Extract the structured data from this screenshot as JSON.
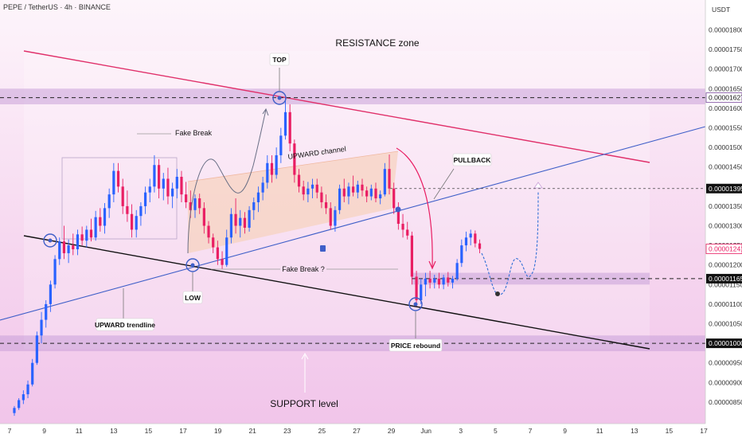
{
  "header": {
    "title": "PEPE / TetherUS · 4h · BINANCE"
  },
  "currency": "USDT",
  "chart_data": {
    "type": "candlestick",
    "symbol": "PEPE / TetherUS",
    "timeframe": "4h",
    "exchange": "BINANCE",
    "y_unit": "USDT",
    "ylim": [
      8.2e-06,
      1.87e-05
    ],
    "y_ticks": [
      "0.00001800",
      "0.00001750",
      "0.00001700",
      "0.00001650",
      "0.00001600",
      "0.00001550",
      "0.00001500",
      "0.00001450",
      "0.00001400",
      "0.00001350",
      "0.00001300",
      "0.00001250",
      "0.00001200",
      "0.00001150",
      "0.00001100",
      "0.00001050",
      "0.00000950",
      "0.00000900",
      "0.00000850"
    ],
    "x_ticks": [
      "7",
      "9",
      "11",
      "13",
      "15",
      "17",
      "19",
      "21",
      "23",
      "25",
      "27",
      "29",
      "Jun",
      "3",
      "5",
      "7",
      "9",
      "11",
      "13",
      "15",
      "17"
    ],
    "price_levels": [
      {
        "label": "0.00001627",
        "value": 1.627e-05,
        "color": "#7b4a9e"
      },
      {
        "label": "0.00001395",
        "value": 1.395e-05,
        "color": "#111111"
      },
      {
        "label": "0.00001241",
        "value": 1.241e-05,
        "color": "#e91e63"
      },
      {
        "label": "0.00001165",
        "value": 1.165e-05,
        "color": "#111111"
      },
      {
        "label": "0.00001000",
        "value": 1e-05,
        "color": "#111111"
      }
    ],
    "annotations": {
      "resistance": "RESISTANCE zone",
      "support": "SUPPORT level",
      "top": "TOP",
      "low": "LOW",
      "pullback": "PULLBACK",
      "upward_trendline": "UPWARD trendline",
      "price_rebound": "PRICE rebound",
      "upward_channel": "UPWARD channel",
      "fake_break_1": "Fake Break",
      "fake_break_2": "Fake Break ?"
    },
    "colors": {
      "bull": "#2962ff",
      "bear": "#e91e63",
      "trendline_blue": "#3f5fc8",
      "trendline_red": "#e0306a",
      "zone": "#c9a0d8"
    },
    "candles": [
      {
        "o": 8.22e-06,
        "h": 8.4e-06,
        "l": 8.15e-06,
        "c": 8.35e-06
      },
      {
        "o": 8.35e-06,
        "h": 8.6e-06,
        "l": 8.3e-06,
        "c": 8.55e-06
      },
      {
        "o": 8.55e-06,
        "h": 8.8e-06,
        "l": 8.45e-06,
        "c": 8.7e-06
      },
      {
        "o": 8.7e-06,
        "h": 9.05e-06,
        "l": 8.6e-06,
        "c": 8.95e-06
      },
      {
        "o": 8.95e-06,
        "h": 9.6e-06,
        "l": 8.9e-06,
        "c": 9.5e-06
      },
      {
        "o": 9.5e-06,
        "h": 1.03e-05,
        "l": 9.45e-06,
        "c": 1.02e-05
      },
      {
        "o": 1.02e-05,
        "h": 1.08e-05,
        "l": 1e-05,
        "c": 1.06e-05
      },
      {
        "o": 1.06e-05,
        "h": 1.11e-05,
        "l": 1.04e-05,
        "c": 1.1e-05
      },
      {
        "o": 1.1e-05,
        "h": 1.16e-05,
        "l": 1.08e-05,
        "c": 1.15e-05
      },
      {
        "o": 1.15e-05,
        "h": 1.225e-05,
        "l": 1.14e-05,
        "c": 1.215e-05
      },
      {
        "o": 1.215e-05,
        "h": 1.27e-05,
        "l": 1.2e-05,
        "c": 1.26e-05
      },
      {
        "o": 1.26e-05,
        "h": 1.3e-05,
        "l": 1.215e-05,
        "c": 1.23e-05
      },
      {
        "o": 1.23e-05,
        "h": 1.265e-05,
        "l": 1.205e-05,
        "c": 1.25e-05
      },
      {
        "o": 1.25e-05,
        "h": 1.28e-05,
        "l": 1.225e-05,
        "c": 1.24e-05
      },
      {
        "o": 1.24e-05,
        "h": 1.29e-05,
        "l": 1.225e-05,
        "c": 1.278e-05
      },
      {
        "o": 1.278e-05,
        "h": 1.298e-05,
        "l": 1.25e-05,
        "c": 1.262e-05
      },
      {
        "o": 1.262e-05,
        "h": 1.3e-05,
        "l": 1.245e-05,
        "c": 1.29e-05
      },
      {
        "o": 1.29e-05,
        "h": 1.318e-05,
        "l": 1.26e-05,
        "c": 1.27e-05
      },
      {
        "o": 1.27e-05,
        "h": 1.338e-05,
        "l": 1.262e-05,
        "c": 1.322e-05
      },
      {
        "o": 1.322e-05,
        "h": 1.345e-05,
        "l": 1.285e-05,
        "c": 1.3e-05
      },
      {
        "o": 1.3e-05,
        "h": 1.358e-05,
        "l": 1.28e-05,
        "c": 1.345e-05
      },
      {
        "o": 1.345e-05,
        "h": 1.395e-05,
        "l": 1.32e-05,
        "c": 1.38e-05
      },
      {
        "o": 1.38e-05,
        "h": 1.46e-05,
        "l": 1.36e-05,
        "c": 1.44e-05
      },
      {
        "o": 1.44e-05,
        "h": 1.46e-05,
        "l": 1.385e-05,
        "c": 1.4e-05
      },
      {
        "o": 1.4e-05,
        "h": 1.42e-05,
        "l": 1.33e-05,
        "c": 1.35e-05
      },
      {
        "o": 1.35e-05,
        "h": 1.39e-05,
        "l": 1.31e-05,
        "c": 1.33e-05
      },
      {
        "o": 1.33e-05,
        "h": 1.355e-05,
        "l": 1.27e-05,
        "c": 1.29e-05
      },
      {
        "o": 1.29e-05,
        "h": 1.34e-05,
        "l": 1.27e-05,
        "c": 1.325e-05
      },
      {
        "o": 1.325e-05,
        "h": 1.36e-05,
        "l": 1.3e-05,
        "c": 1.35e-05
      },
      {
        "o": 1.35e-05,
        "h": 1.4e-05,
        "l": 1.33e-05,
        "c": 1.385e-05
      },
      {
        "o": 1.385e-05,
        "h": 1.42e-05,
        "l": 1.36e-05,
        "c": 1.4e-05
      },
      {
        "o": 1.4e-05,
        "h": 1.48e-05,
        "l": 1.385e-05,
        "c": 1.455e-05
      },
      {
        "o": 1.455e-05,
        "h": 1.47e-05,
        "l": 1.37e-05,
        "c": 1.395e-05
      },
      {
        "o": 1.395e-05,
        "h": 1.435e-05,
        "l": 1.365e-05,
        "c": 1.42e-05
      },
      {
        "o": 1.42e-05,
        "h": 1.448e-05,
        "l": 1.355e-05,
        "c": 1.375e-05
      },
      {
        "o": 1.375e-05,
        "h": 1.41e-05,
        "l": 1.345e-05,
        "c": 1.395e-05
      },
      {
        "o": 1.395e-05,
        "h": 1.445e-05,
        "l": 1.37e-05,
        "c": 1.425e-05
      },
      {
        "o": 1.425e-05,
        "h": 1.44e-05,
        "l": 1.36e-05,
        "c": 1.38e-05
      },
      {
        "o": 1.38e-05,
        "h": 1.412e-05,
        "l": 1.345e-05,
        "c": 1.36e-05
      },
      {
        "o": 1.36e-05,
        "h": 1.39e-05,
        "l": 1.32e-05,
        "c": 1.34e-05
      },
      {
        "o": 1.34e-05,
        "h": 1.38e-05,
        "l": 1.32e-05,
        "c": 1.37e-05
      },
      {
        "o": 1.37e-05,
        "h": 1.382e-05,
        "l": 1.33e-05,
        "c": 1.345e-05
      },
      {
        "o": 1.345e-05,
        "h": 1.36e-05,
        "l": 1.28e-05,
        "c": 1.3e-05
      },
      {
        "o": 1.3e-05,
        "h": 1.312e-05,
        "l": 1.255e-05,
        "c": 1.27e-05
      },
      {
        "o": 1.27e-05,
        "h": 1.28e-05,
        "l": 1.23e-05,
        "c": 1.245e-05
      },
      {
        "o": 1.245e-05,
        "h": 1.262e-05,
        "l": 1.2e-05,
        "c": 1.215e-05
      },
      {
        "o": 1.215e-05,
        "h": 1.235e-05,
        "l": 1.19e-05,
        "c": 1.2e-05
      },
      {
        "o": 1.2e-05,
        "h": 1.29e-05,
        "l": 1.195e-05,
        "c": 1.27e-05
      },
      {
        "o": 1.27e-05,
        "h": 1.345e-05,
        "l": 1.255e-05,
        "c": 1.33e-05
      },
      {
        "o": 1.33e-05,
        "h": 1.37e-05,
        "l": 1.28e-05,
        "c": 1.3e-05
      },
      {
        "o": 1.3e-05,
        "h": 1.34e-05,
        "l": 1.27e-05,
        "c": 1.32e-05
      },
      {
        "o": 1.32e-05,
        "h": 1.335e-05,
        "l": 1.28e-05,
        "c": 1.295e-05
      },
      {
        "o": 1.295e-05,
        "h": 1.35e-05,
        "l": 1.285e-05,
        "c": 1.34e-05
      },
      {
        "o": 1.34e-05,
        "h": 1.372e-05,
        "l": 1.315e-05,
        "c": 1.36e-05
      },
      {
        "o": 1.36e-05,
        "h": 1.4e-05,
        "l": 1.335e-05,
        "c": 1.385e-05
      },
      {
        "o": 1.385e-05,
        "h": 1.425e-05,
        "l": 1.365e-05,
        "c": 1.41e-05
      },
      {
        "o": 1.41e-05,
        "h": 1.48e-05,
        "l": 1.395e-05,
        "c": 1.46e-05
      },
      {
        "o": 1.46e-05,
        "h": 1.48e-05,
        "l": 1.41e-05,
        "c": 1.43e-05
      },
      {
        "o": 1.43e-05,
        "h": 1.5e-05,
        "l": 1.42e-05,
        "c": 1.48e-05
      },
      {
        "o": 1.48e-05,
        "h": 1.55e-05,
        "l": 1.46e-05,
        "c": 1.53e-05
      },
      {
        "o": 1.53e-05,
        "h": 1.627e-05,
        "l": 1.52e-05,
        "c": 1.59e-05
      },
      {
        "o": 1.59e-05,
        "h": 1.61e-05,
        "l": 1.49e-05,
        "c": 1.51e-05
      },
      {
        "o": 1.51e-05,
        "h": 1.52e-05,
        "l": 1.41e-05,
        "c": 1.43e-05
      },
      {
        "o": 1.43e-05,
        "h": 1.445e-05,
        "l": 1.385e-05,
        "c": 1.4e-05
      },
      {
        "o": 1.4e-05,
        "h": 1.415e-05,
        "l": 1.365e-05,
        "c": 1.38e-05
      },
      {
        "o": 1.38e-05,
        "h": 1.412e-05,
        "l": 1.36e-05,
        "c": 1.395e-05
      },
      {
        "o": 1.395e-05,
        "h": 1.42e-05,
        "l": 1.37e-05,
        "c": 1.405e-05
      },
      {
        "o": 1.405e-05,
        "h": 1.42e-05,
        "l": 1.37e-05,
        "c": 1.385e-05
      },
      {
        "o": 1.385e-05,
        "h": 1.4e-05,
        "l": 1.345e-05,
        "c": 1.36e-05
      },
      {
        "o": 1.36e-05,
        "h": 1.38e-05,
        "l": 1.33e-05,
        "c": 1.345e-05
      },
      {
        "o": 1.345e-05,
        "h": 1.36e-05,
        "l": 1.29e-05,
        "c": 1.3e-05
      },
      {
        "o": 1.3e-05,
        "h": 1.35e-05,
        "l": 1.285e-05,
        "c": 1.34e-05
      },
      {
        "o": 1.34e-05,
        "h": 1.405e-05,
        "l": 1.33e-05,
        "c": 1.395e-05
      },
      {
        "o": 1.395e-05,
        "h": 1.42e-05,
        "l": 1.36e-05,
        "c": 1.375e-05
      },
      {
        "o": 1.375e-05,
        "h": 1.41e-05,
        "l": 1.355e-05,
        "c": 1.4e-05
      },
      {
        "o": 1.4e-05,
        "h": 1.428e-05,
        "l": 1.375e-05,
        "c": 1.385e-05
      },
      {
        "o": 1.385e-05,
        "h": 1.415e-05,
        "l": 1.37e-05,
        "c": 1.405e-05
      },
      {
        "o": 1.405e-05,
        "h": 1.42e-05,
        "l": 1.375e-05,
        "c": 1.39e-05
      },
      {
        "o": 1.39e-05,
        "h": 1.4e-05,
        "l": 1.36e-05,
        "c": 1.375e-05
      },
      {
        "o": 1.375e-05,
        "h": 1.405e-05,
        "l": 1.365e-05,
        "c": 1.395e-05
      },
      {
        "o": 1.395e-05,
        "h": 1.41e-05,
        "l": 1.36e-05,
        "c": 1.37e-05
      },
      {
        "o": 1.37e-05,
        "h": 1.39e-05,
        "l": 1.355e-05,
        "c": 1.38e-05
      },
      {
        "o": 1.38e-05,
        "h": 1.46e-05,
        "l": 1.375e-05,
        "c": 1.445e-05
      },
      {
        "o": 1.445e-05,
        "h": 1.482e-05,
        "l": 1.38e-05,
        "c": 1.395e-05
      },
      {
        "o": 1.395e-05,
        "h": 1.41e-05,
        "l": 1.33e-05,
        "c": 1.345e-05
      },
      {
        "o": 1.345e-05,
        "h": 1.36e-05,
        "l": 1.29e-05,
        "c": 1.305e-05
      },
      {
        "o": 1.305e-05,
        "h": 1.33e-05,
        "l": 1.27e-05,
        "c": 1.29e-05
      },
      {
        "o": 1.29e-05,
        "h": 1.31e-05,
        "l": 1.265e-05,
        "c": 1.275e-05
      },
      {
        "o": 1.275e-05,
        "h": 1.285e-05,
        "l": 1.15e-05,
        "c": 1.17e-05
      },
      {
        "o": 1.17e-05,
        "h": 1.185e-05,
        "l": 1.095e-05,
        "c": 1.11e-05
      },
      {
        "o": 1.11e-05,
        "h": 1.165e-05,
        "l": 1.1e-05,
        "c": 1.15e-05
      },
      {
        "o": 1.15e-05,
        "h": 1.18e-05,
        "l": 1.12e-05,
        "c": 1.165e-05
      },
      {
        "o": 1.165e-05,
        "h": 1.185e-05,
        "l": 1.14e-05,
        "c": 1.155e-05
      },
      {
        "o": 1.155e-05,
        "h": 1.175e-05,
        "l": 1.14e-05,
        "c": 1.165e-05
      },
      {
        "o": 1.165e-05,
        "h": 1.18e-05,
        "l": 1.14e-05,
        "c": 1.15e-05
      },
      {
        "o": 1.15e-05,
        "h": 1.175e-05,
        "l": 1.138e-05,
        "c": 1.168e-05
      },
      {
        "o": 1.168e-05,
        "h": 1.182e-05,
        "l": 1.145e-05,
        "c": 1.155e-05
      },
      {
        "o": 1.155e-05,
        "h": 1.172e-05,
        "l": 1.14e-05,
        "c": 1.165e-05
      },
      {
        "o": 1.165e-05,
        "h": 1.215e-05,
        "l": 1.16e-05,
        "c": 1.205e-05
      },
      {
        "o": 1.205e-05,
        "h": 1.265e-05,
        "l": 1.195e-05,
        "c": 1.25e-05
      },
      {
        "o": 1.25e-05,
        "h": 1.285e-05,
        "l": 1.235e-05,
        "c": 1.27e-05
      },
      {
        "o": 1.27e-05,
        "h": 1.29e-05,
        "l": 1.25e-05,
        "c": 1.28e-05
      },
      {
        "o": 1.28e-05,
        "h": 1.288e-05,
        "l": 1.245e-05,
        "c": 1.255e-05
      },
      {
        "o": 1.255e-05,
        "h": 1.265e-05,
        "l": 1.23e-05,
        "c": 1.241e-05
      }
    ]
  }
}
